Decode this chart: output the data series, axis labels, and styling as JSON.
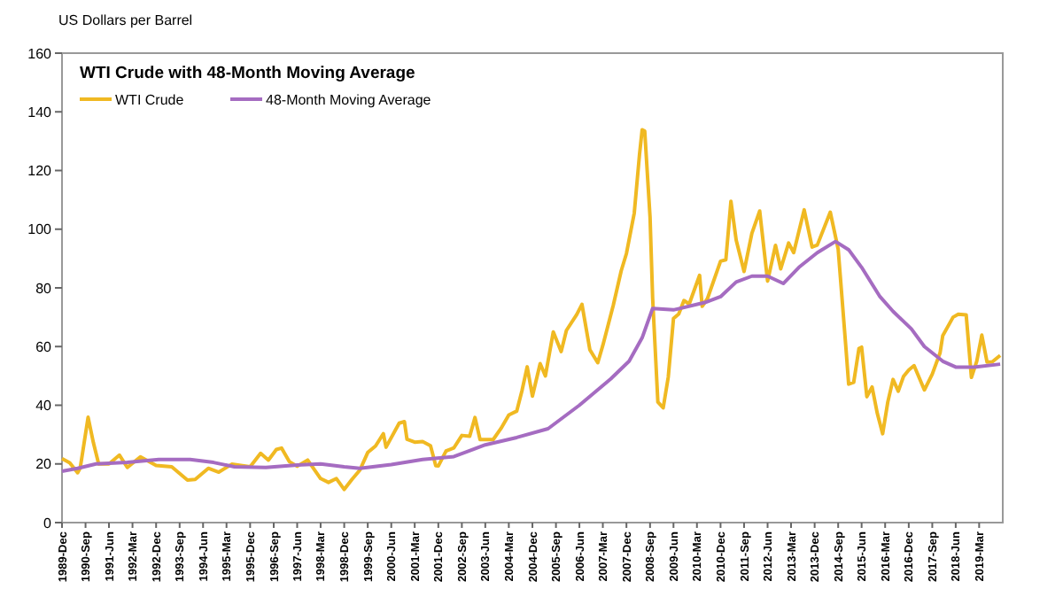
{
  "chart_data": {
    "type": "line",
    "title": "WTI Crude with 48-Month Moving Average",
    "ylabel": "US Dollars per Barrel",
    "legend": "top left",
    "grid": false,
    "marker": "none",
    "line_style": "solid",
    "xlim": [
      "1989-12",
      "2019-12"
    ],
    "xticks": [
      {
        "value": "1989-12",
        "label": "1989-Dec"
      },
      {
        "value": "1990-09",
        "label": "1990-Sep"
      },
      {
        "value": "1991-06",
        "label": "1991-Jun"
      },
      {
        "value": "1992-03",
        "label": "1992-Mar"
      },
      {
        "value": "1992-12",
        "label": "1992-Dec"
      },
      {
        "value": "1993-09",
        "label": "1993-Sep"
      },
      {
        "value": "1994-06",
        "label": "1994-Jun"
      },
      {
        "value": "1995-03",
        "label": "1995-Mar"
      },
      {
        "value": "1995-12",
        "label": "1995-Dec"
      },
      {
        "value": "1996-09",
        "label": "1996-Sep"
      },
      {
        "value": "1997-06",
        "label": "1997-Jun"
      },
      {
        "value": "1998-03",
        "label": "1998-Mar"
      },
      {
        "value": "1998-12",
        "label": "1998-Dec"
      },
      {
        "value": "1999-09",
        "label": "1999-Sep"
      },
      {
        "value": "2000-06",
        "label": "2000-Jun"
      },
      {
        "value": "2001-03",
        "label": "2001-Mar"
      },
      {
        "value": "2001-12",
        "label": "2001-Dec"
      },
      {
        "value": "2002-09",
        "label": "2002-Sep"
      },
      {
        "value": "2003-06",
        "label": "2003-Jun"
      },
      {
        "value": "2004-03",
        "label": "2004-Mar"
      },
      {
        "value": "2004-12",
        "label": "2004-Dec"
      },
      {
        "value": "2005-09",
        "label": "2005-Sep"
      },
      {
        "value": "2006-06",
        "label": "2006-Jun"
      },
      {
        "value": "2007-03",
        "label": "2007-Mar"
      },
      {
        "value": "2007-12",
        "label": "2007-Dec"
      },
      {
        "value": "2008-09",
        "label": "2008-Sep"
      },
      {
        "value": "2009-06",
        "label": "2009-Jun"
      },
      {
        "value": "2010-03",
        "label": "2010-Mar"
      },
      {
        "value": "2010-12",
        "label": "2010-Dec"
      },
      {
        "value": "2011-09",
        "label": "2011-Sep"
      },
      {
        "value": "2012-06",
        "label": "2012-Jun"
      },
      {
        "value": "2013-03",
        "label": "2013-Mar"
      },
      {
        "value": "2013-12",
        "label": "2013-Dec"
      },
      {
        "value": "2014-09",
        "label": "2014-Sep"
      },
      {
        "value": "2015-06",
        "label": "2015-Jun"
      },
      {
        "value": "2016-03",
        "label": "2016-Mar"
      },
      {
        "value": "2016-12",
        "label": "2016-Dec"
      },
      {
        "value": "2017-09",
        "label": "2017-Sep"
      },
      {
        "value": "2018-06",
        "label": "2018-Jun"
      },
      {
        "value": "2019-03",
        "label": "2019-Mar"
      }
    ],
    "ylim": [
      0,
      160
    ],
    "yticks": [
      0,
      20,
      40,
      60,
      80,
      100,
      120,
      140,
      160
    ],
    "series": [
      {
        "name": "WTI Crude",
        "color": "#f0b922",
        "x": [
          "1989-12",
          "1990-03",
          "1990-06",
          "1990-07",
          "1990-10",
          "1990-12",
          "1991-02",
          "1991-06",
          "1991-10",
          "1992-01",
          "1992-06",
          "1992-12",
          "1993-06",
          "1993-12",
          "1994-03",
          "1994-08",
          "1994-12",
          "1995-05",
          "1995-12",
          "1996-04",
          "1996-07",
          "1996-10",
          "1996-12",
          "1997-03",
          "1997-06",
          "1997-10",
          "1998-03",
          "1998-06",
          "1998-09",
          "1998-12",
          "1999-03",
          "1999-06",
          "1999-09",
          "1999-12",
          "2000-03",
          "2000-04",
          "2000-09",
          "2000-11",
          "2000-12",
          "2001-03",
          "2001-06",
          "2001-09",
          "2001-11",
          "2001-12",
          "2002-03",
          "2002-06",
          "2002-09",
          "2002-12",
          "2003-02",
          "2003-04",
          "2003-09",
          "2003-12",
          "2004-03",
          "2004-06",
          "2004-08",
          "2004-10",
          "2004-12",
          "2005-03",
          "2005-05",
          "2005-08",
          "2005-11",
          "2006-01",
          "2006-05",
          "2006-07",
          "2006-10",
          "2007-01",
          "2007-03",
          "2007-07",
          "2007-10",
          "2007-12",
          "2008-03",
          "2008-05",
          "2008-06",
          "2008-07",
          "2008-09",
          "2008-10",
          "2008-12",
          "2009-02",
          "2009-04",
          "2009-06",
          "2009-08",
          "2009-10",
          "2009-12",
          "2010-04",
          "2010-05",
          "2010-07",
          "2010-12",
          "2011-02",
          "2011-04",
          "2011-06",
          "2011-09",
          "2011-12",
          "2012-03",
          "2012-06",
          "2012-09",
          "2012-11",
          "2013-02",
          "2013-04",
          "2013-08",
          "2013-11",
          "2014-01",
          "2014-06",
          "2014-09",
          "2014-12",
          "2015-01",
          "2015-03",
          "2015-05",
          "2015-06",
          "2015-08",
          "2015-10",
          "2015-12",
          "2016-02",
          "2016-04",
          "2016-06",
          "2016-08",
          "2016-10",
          "2016-12",
          "2017-02",
          "2017-06",
          "2017-09",
          "2017-12",
          "2018-01",
          "2018-05",
          "2018-07",
          "2018-10",
          "2018-12",
          "2019-02",
          "2019-04",
          "2019-06",
          "2019-08",
          "2019-11"
        ],
        "values": [
          21.8,
          20.4,
          17,
          18.6,
          35.9,
          27.3,
          20,
          20,
          23,
          18.8,
          22.4,
          19.5,
          19,
          14.5,
          14.7,
          18.5,
          17.2,
          19.9,
          19,
          23.6,
          21.3,
          24.9,
          25.4,
          20.8,
          19.2,
          21.3,
          15,
          13.7,
          15,
          11.3,
          14.7,
          17.9,
          23.9,
          26.1,
          30.3,
          25.7,
          33.9,
          34.4,
          28.4,
          27.4,
          27.6,
          26.2,
          19.4,
          19.3,
          24.4,
          25.5,
          29.7,
          29.4,
          35.8,
          28.3,
          28.3,
          32.1,
          36.7,
          38,
          44.9,
          53.1,
          43.1,
          54.2,
          50,
          65,
          58.3,
          65.5,
          70.9,
          74.4,
          58.9,
          54.5,
          60.4,
          74.1,
          85.8,
          91.7,
          105.5,
          125.4,
          133.9,
          133.4,
          104.1,
          76.6,
          41.1,
          39.1,
          49.6,
          69.6,
          71.1,
          75.7,
          74.5,
          84.3,
          73.7,
          76.3,
          89.1,
          89.6,
          109.5,
          96.3,
          85.6,
          98.6,
          106.2,
          82.3,
          94.5,
          86.5,
          95.3,
          92,
          106.6,
          93.9,
          94.6,
          105.8,
          93.2,
          59.3,
          47.2,
          47.8,
          59.3,
          59.8,
          42.9,
          46.2,
          37.2,
          30.3,
          41.1,
          48.8,
          44.8,
          49.8,
          52,
          53.5,
          45.2,
          50.6,
          57.9,
          63.7,
          70,
          71,
          70.8,
          49.5,
          55,
          63.9,
          54.7,
          54.8,
          57
        ]
      },
      {
        "name": "48-Month Moving Average",
        "color": "#a56cc1",
        "x": [
          "1989-12",
          "1990-06",
          "1991-01",
          "1992-01",
          "1993-01",
          "1994-01",
          "1994-10",
          "1995-06",
          "1996-06",
          "1997-06",
          "1998-03",
          "1998-12",
          "1999-06",
          "2000-06",
          "2001-06",
          "2002-06",
          "2003-06",
          "2004-06",
          "2005-06",
          "2006-06",
          "2007-06",
          "2008-01",
          "2008-06",
          "2008-10",
          "2009-06",
          "2010-06",
          "2010-12",
          "2011-06",
          "2011-12",
          "2012-06",
          "2012-12",
          "2013-06",
          "2014-01",
          "2014-08",
          "2015-01",
          "2015-06",
          "2016-01",
          "2016-06",
          "2017-01",
          "2017-06",
          "2018-01",
          "2018-06",
          "2019-01",
          "2019-11"
        ],
        "values": [
          17.5,
          18.5,
          20,
          20.5,
          21.5,
          21.5,
          20.5,
          19,
          18.8,
          19.6,
          20,
          19,
          18.5,
          19.8,
          21.5,
          22.5,
          26.5,
          29,
          32,
          40,
          49,
          55,
          63,
          73,
          72.5,
          75,
          77,
          82,
          84,
          84,
          81.5,
          87,
          92,
          95.8,
          93,
          87,
          77,
          72,
          66,
          60,
          55,
          53,
          53,
          54
        ]
      }
    ]
  }
}
